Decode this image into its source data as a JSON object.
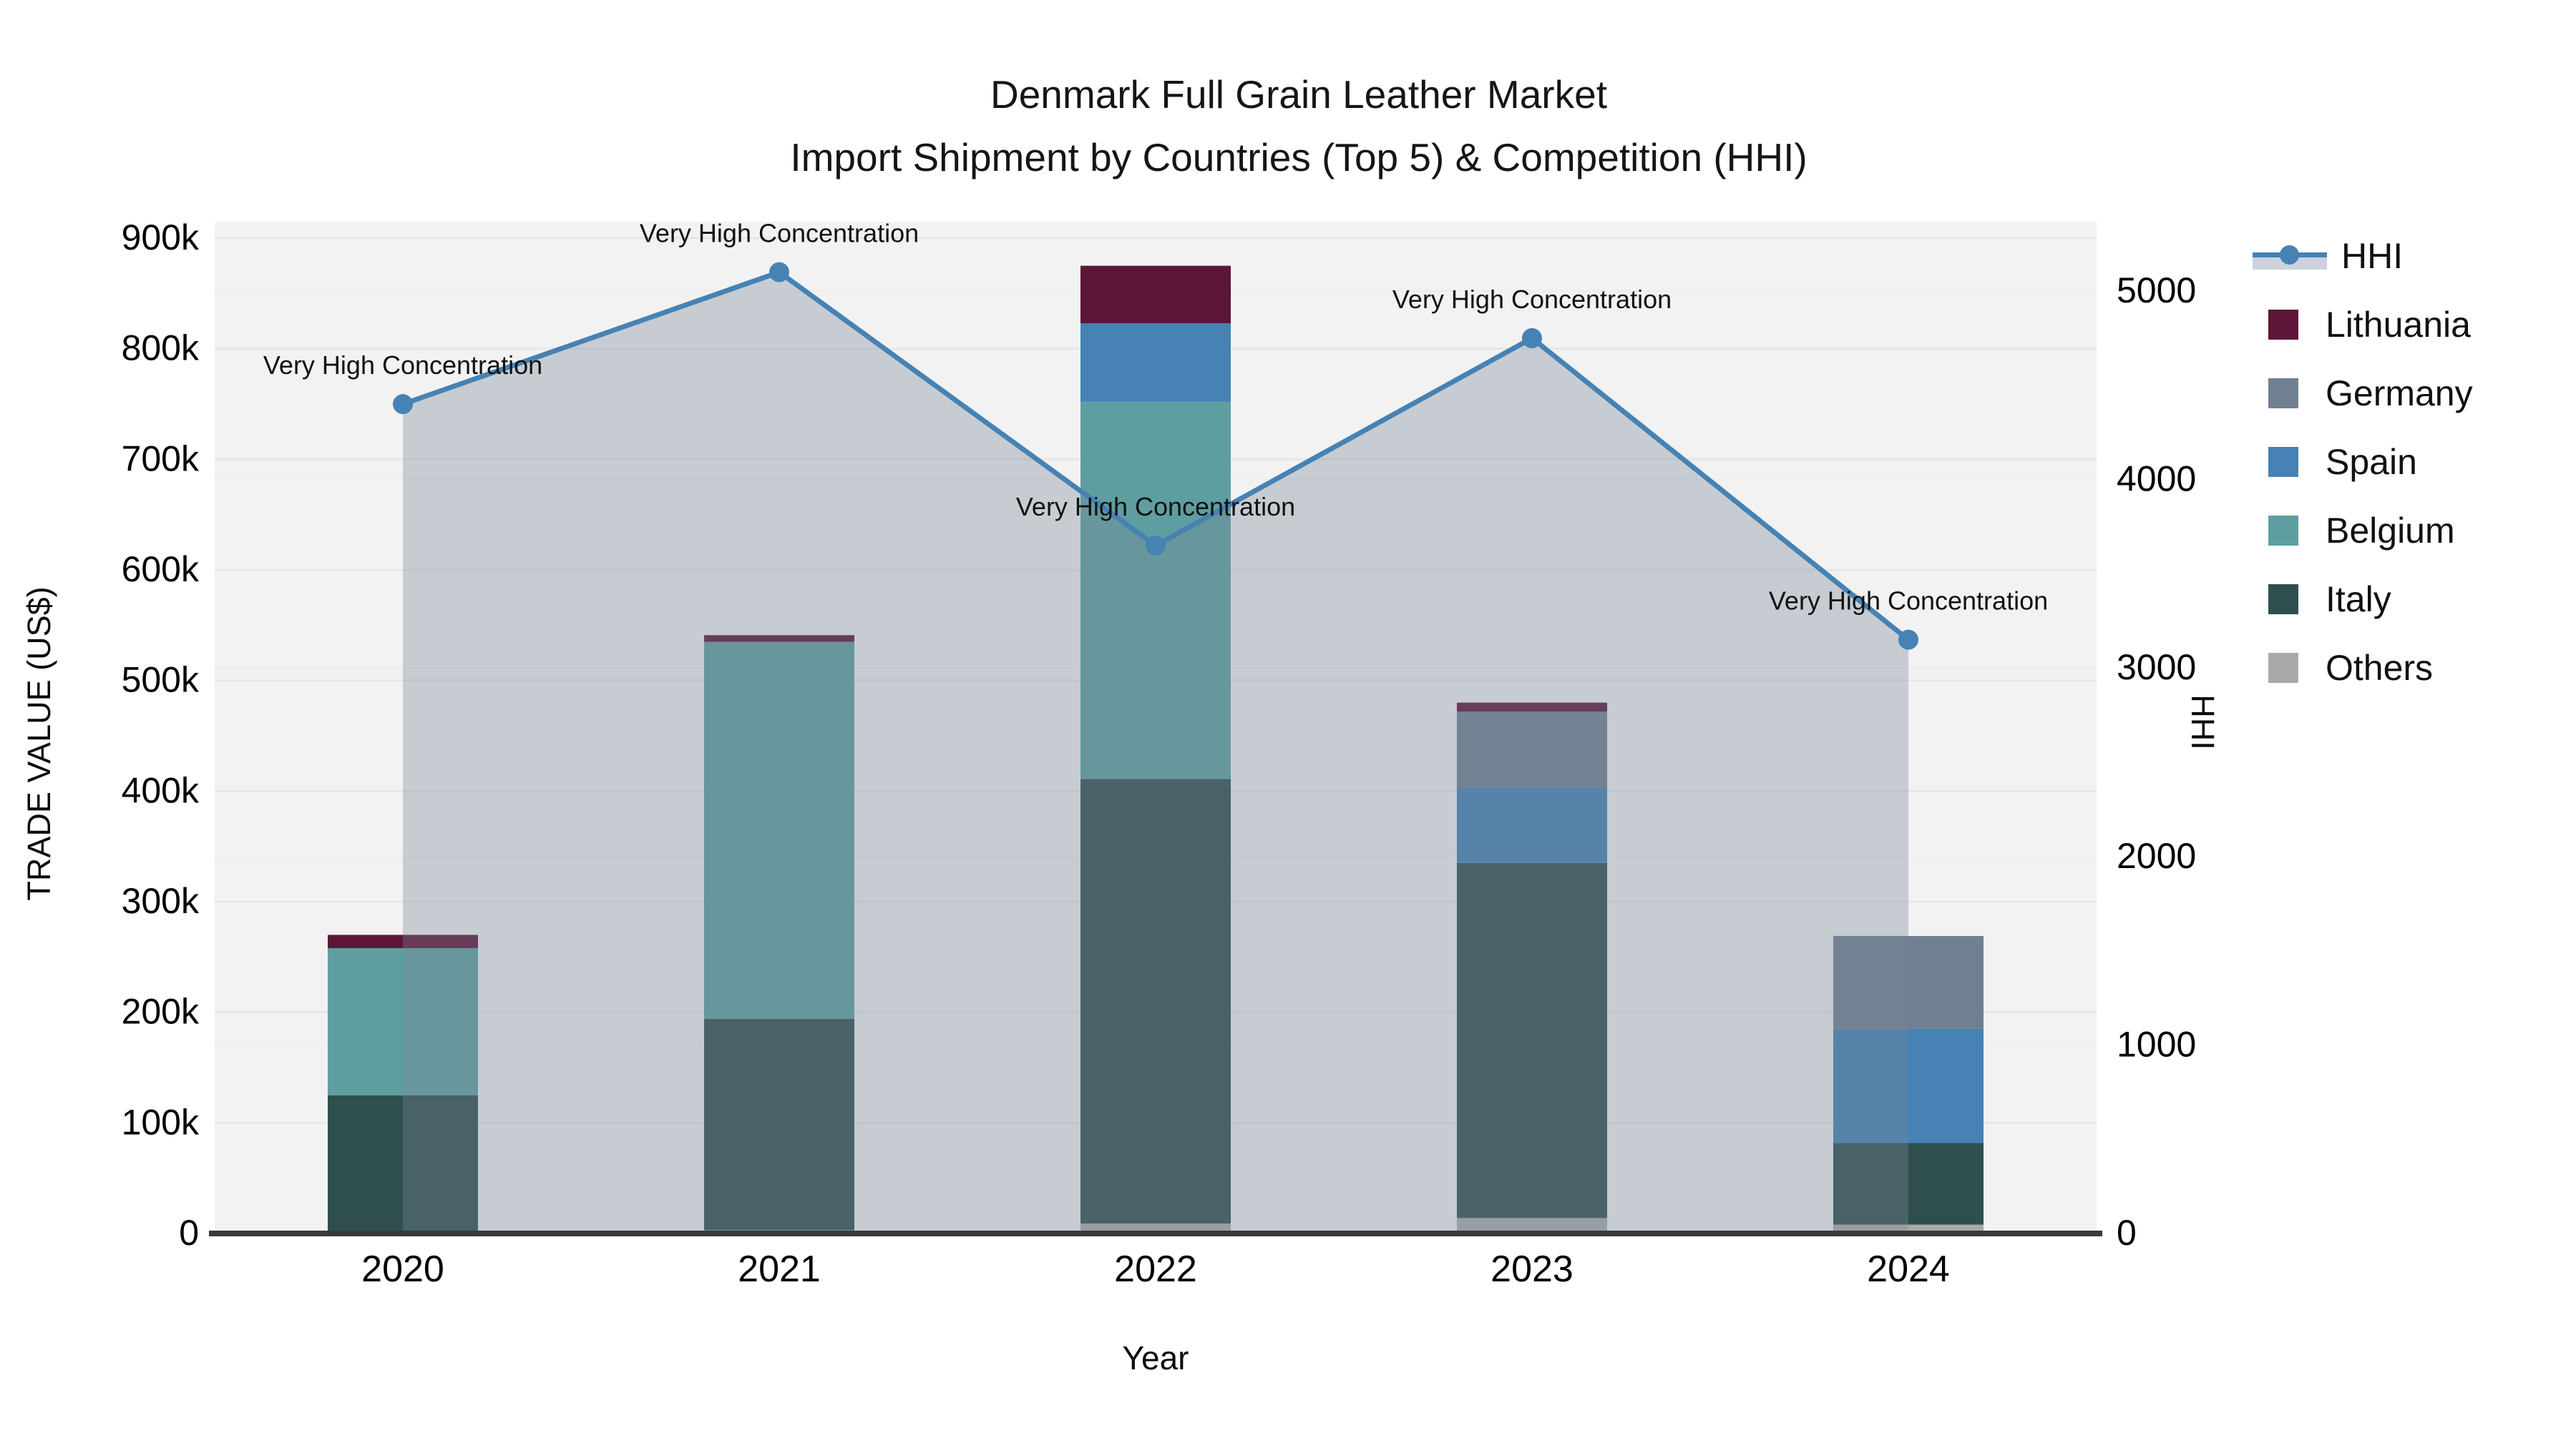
{
  "title": {
    "line1": "Denmark Full Grain Leather Market",
    "line2": "Import Shipment by Countries (Top 5) & Competition (HHI)"
  },
  "axes": {
    "y_left_label": "TRADE VALUE (US$)",
    "y_right_label": "HHI",
    "x_label": "Year",
    "y_left_ticks": [
      "0",
      "100k",
      "200k",
      "300k",
      "400k",
      "500k",
      "600k",
      "700k",
      "800k",
      "900k"
    ],
    "y_right_ticks": [
      "0",
      "1000",
      "2000",
      "3000",
      "4000",
      "5000"
    ]
  },
  "annotation_text": "Very High Concentration",
  "colors": {
    "lithuania": "#5E1638",
    "germany": "#708090",
    "spain": "#4682B4",
    "belgium": "#5F9EA0",
    "italy": "#2F4F4F",
    "others": "#A9A9A9",
    "hhi_line": "#4682B4",
    "area_fill": "#778899",
    "area_fill_alpha": 0.35,
    "plot_bg": "#F2F2F2",
    "grid": "#E7E7E7",
    "grid_right": "#EDEDED",
    "axis_line": "#3A3A3A",
    "text": "#111111"
  },
  "chart_data": {
    "type": "bar",
    "subtype": "stacked-bar-with-line",
    "title": "Denmark Full Grain Leather Market — Import Shipment by Countries (Top 5) & Competition (HHI)",
    "xlabel": "Year",
    "ylabel_left": "TRADE VALUE (US$)",
    "ylabel_right": "HHI",
    "ylim_left": [
      0,
      915000
    ],
    "ylim_right": [
      0,
      5200
    ],
    "grid": true,
    "legend_position": "right",
    "categories": [
      "2020",
      "2021",
      "2022",
      "2023",
      "2024"
    ],
    "stack_order_bottom_to_top": [
      "Others",
      "Italy",
      "Belgium",
      "Spain",
      "Germany",
      "Lithuania"
    ],
    "series": [
      {
        "name": "Others",
        "values": [
          0,
          3000,
          9000,
          14000,
          8000
        ]
      },
      {
        "name": "Italy",
        "values": [
          125000,
          191000,
          402000,
          321000,
          74000
        ]
      },
      {
        "name": "Belgium",
        "values": [
          133000,
          341000,
          341000,
          0,
          0
        ]
      },
      {
        "name": "Spain",
        "values": [
          0,
          0,
          71000,
          68000,
          103000
        ]
      },
      {
        "name": "Germany",
        "values": [
          0,
          0,
          0,
          69000,
          84000
        ]
      },
      {
        "name": "Lithuania",
        "values": [
          12000,
          6000,
          52000,
          8000,
          0
        ]
      }
    ],
    "bar_totals": [
      270000,
      541000,
      875000,
      480000,
      269000
    ],
    "line": {
      "name": "HHI",
      "axis": "right",
      "values": [
        4400,
        5100,
        3650,
        4750,
        3150
      ],
      "area_fill": true
    },
    "annotations": [
      {
        "x": "2020",
        "label": "Very High Concentration"
      },
      {
        "x": "2021",
        "label": "Very High Concentration"
      },
      {
        "x": "2022",
        "label": "Very High Concentration"
      },
      {
        "x": "2023",
        "label": "Very High Concentration"
      },
      {
        "x": "2024",
        "label": "Very High Concentration"
      }
    ]
  },
  "legend": {
    "items": [
      {
        "label": "HHI",
        "type": "line",
        "color": "#4682B4"
      },
      {
        "label": "Lithuania",
        "type": "patch",
        "color": "#5E1638"
      },
      {
        "label": "Germany",
        "type": "patch",
        "color": "#708090"
      },
      {
        "label": "Spain",
        "type": "patch",
        "color": "#4682B4"
      },
      {
        "label": "Belgium",
        "type": "patch",
        "color": "#5F9EA0"
      },
      {
        "label": "Italy",
        "type": "patch",
        "color": "#2F4F4F"
      },
      {
        "label": "Others",
        "type": "patch",
        "color": "#A9A9A9"
      }
    ]
  }
}
